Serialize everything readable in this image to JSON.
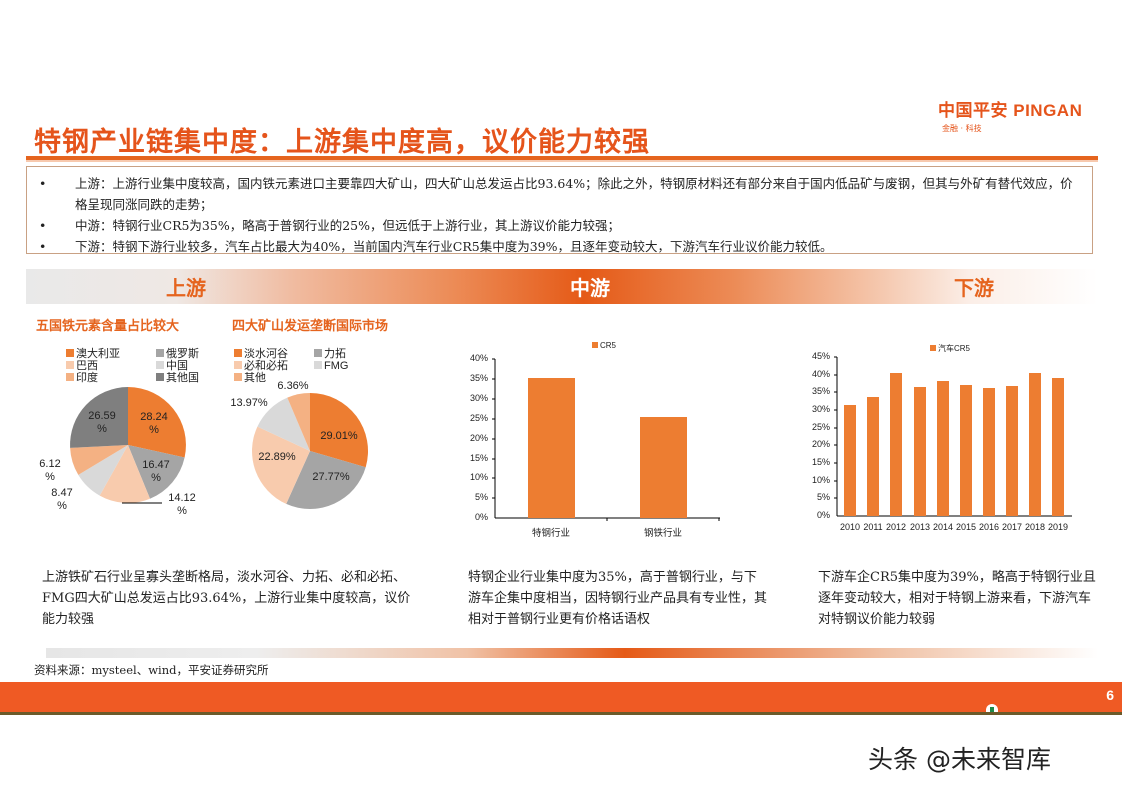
{
  "header": {
    "logo_cn": "中国平安",
    "logo_en": "PINGAN",
    "logo_sub": "金融 · 科技",
    "title": "特钢产业链集中度：上游集中度高，议价能力较强"
  },
  "summary": {
    "items": [
      {
        "bullet": "•",
        "text": "上游：上游行业集中度较高，国内铁元素进口主要靠四大矿山，四大矿山总发运占比93.64%；除此之外，特钢原材料还有部分来自于国内低品矿与废钢，但其与外矿有替代效应，价格呈现同涨同跌的走势；"
      },
      {
        "bullet": "•",
        "text": "中游：特钢行业CR5为35%，略高于普钢行业的25%，但远低于上游行业，其上游议价能力较强；"
      },
      {
        "bullet": "•",
        "text": "下游：特钢下游行业较多，汽车占比最大为40%，当前国内汽车行业CR5集中度为39%，且逐年变动较大，下游汽车行业议价能力较低。"
      }
    ]
  },
  "band": {
    "upstream": "上游",
    "midstream": "中游",
    "downstream": "下游"
  },
  "upstream": {
    "heading1": "五国铁元素含量占比较大",
    "heading2": "四大矿山发运垄断国际市场",
    "paragraph": "上游铁矿石行业呈寡头垄断格局，淡水河谷、力拓、必和必拓、FMG四大矿山总发运占比93.64%，上游行业集中度较高，议价能力较强"
  },
  "midstream": {
    "paragraph": "特钢企业行业集中度为35%，高于普钢行业，与下游车企集中度相当，因特钢行业产品具有专业性，其相对于普钢行业更有价格话语权"
  },
  "downstream": {
    "paragraph": "下游车企CR5集中度为39%，略高于特钢行业且逐年变动较大，相对于特钢上游来看，下游汽车对特钢议价能力较弱"
  },
  "footer": {
    "source": "资料来源：mysteel、wind，平安证券研究所",
    "page": "6",
    "watermark": "头条 @未来智库"
  },
  "colors": {
    "accent": "#e5541b",
    "bar": "#ed7d31"
  },
  "chart_data": [
    {
      "type": "pie",
      "title": "五国铁元素含量占比较大",
      "labels": [
        "澳大利亚",
        "俄罗斯",
        "巴西",
        "中国",
        "印度",
        "其他国家"
      ],
      "legend_display": [
        "澳大利亚",
        "俄罗斯",
        "巴西",
        "中国",
        "印度",
        "其他国"
      ],
      "values": [
        28.24,
        16.47,
        14.12,
        8.47,
        6.12,
        26.59
      ],
      "value_labels": [
        "28.24\n%",
        "16.47\n%",
        "14.12\n%",
        "8.47\n%",
        "6.12\n%",
        "26.59\n%"
      ],
      "colors": [
        "#ed7d31",
        "#a5a5a5",
        "#f8cbad",
        "#d9d9d9",
        "#f4b183",
        "#7f7f7f"
      ]
    },
    {
      "type": "pie",
      "title": "四大矿山发运垄断国际市场",
      "labels": [
        "淡水河谷",
        "力拓",
        "必和必拓",
        "FMG",
        "其他"
      ],
      "values": [
        29.01,
        27.77,
        22.89,
        13.97,
        6.36
      ],
      "value_labels": [
        "29.01%",
        "27.77%",
        "22.89%",
        "13.97%",
        "6.36%"
      ],
      "colors": [
        "#ed7d31",
        "#a5a5a5",
        "#f8cbad",
        "#d9d9d9",
        "#f4b183"
      ]
    },
    {
      "type": "bar",
      "title": "",
      "legend": [
        "CR5"
      ],
      "categories": [
        "特钢行业",
        "钢铁行业"
      ],
      "values": [
        35,
        25
      ],
      "yticks": [
        "0%",
        "5%",
        "10%",
        "15%",
        "20%",
        "25%",
        "30%",
        "35%",
        "40%"
      ],
      "ylim": [
        0,
        40
      ],
      "xlabel": "",
      "ylabel": ""
    },
    {
      "type": "bar",
      "title": "",
      "legend": [
        "汽车CR5"
      ],
      "categories": [
        "2010",
        "2011",
        "2012",
        "2013",
        "2014",
        "2015",
        "2016",
        "2017",
        "2018",
        "2019"
      ],
      "values": [
        31.5,
        33.7,
        40.5,
        36.4,
        38.1,
        37.0,
        36.1,
        36.7,
        40.3,
        38.8
      ],
      "yticks": [
        "0%",
        "5%",
        "10%",
        "15%",
        "20%",
        "25%",
        "30%",
        "35%",
        "40%",
        "45%"
      ],
      "ylim": [
        0,
        45
      ],
      "xlabel": "",
      "ylabel": ""
    }
  ]
}
